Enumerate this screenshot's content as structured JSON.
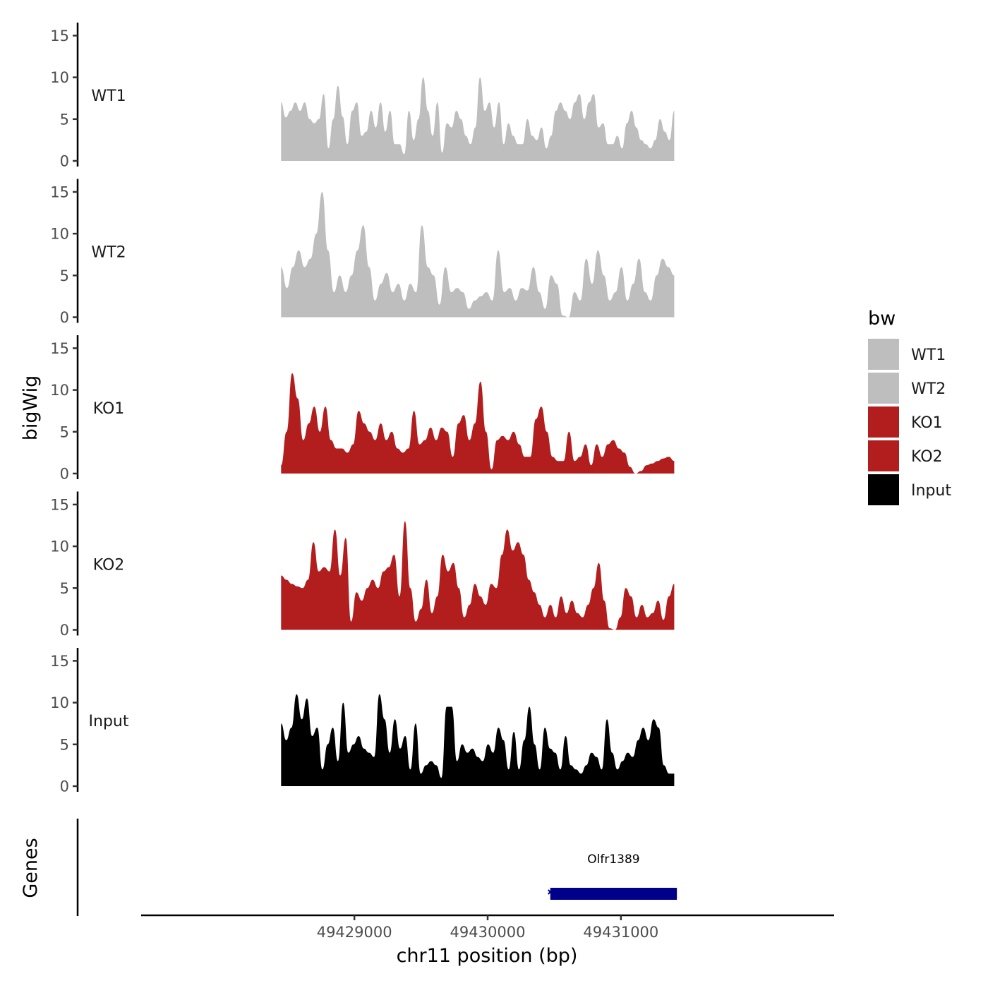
{
  "chart_data": {
    "type": "area",
    "ylabel": "bigWig",
    "xlabel": "chr11 position (bp)",
    "xlim": [
      49427400,
      49432600
    ],
    "ylim": [
      0,
      15.5
    ],
    "y_ticks": [
      "0",
      "5",
      "10",
      "15"
    ],
    "x_ticks": [
      {
        "value": 49429000,
        "label": "49429000"
      },
      {
        "value": 49430000,
        "label": "49430000"
      },
      {
        "value": 49431000,
        "label": "49431000"
      }
    ],
    "data_range": [
      49428450,
      49431400
    ],
    "legend": {
      "title": "bw",
      "placement": "right",
      "entries": [
        {
          "label": "WT1",
          "color": "#bebebe"
        },
        {
          "label": "WT2",
          "color": "#bebebe"
        },
        {
          "label": "KO1",
          "color": "#b21e1e"
        },
        {
          "label": "KO2",
          "color": "#b21e1e"
        },
        {
          "label": "Input",
          "color": "#000000"
        }
      ]
    },
    "tracks": [
      {
        "name": "WT1",
        "color": "#bebebe",
        "values": [
          7,
          5.2,
          6,
          7,
          6,
          7,
          5,
          4.5,
          5,
          8,
          1.5,
          5,
          9,
          5.3,
          2,
          6,
          7,
          3,
          3.5,
          6,
          4,
          7,
          3.5,
          6,
          2,
          2,
          0.8,
          6,
          2.5,
          5,
          10,
          6,
          3,
          7,
          1,
          4.5,
          4,
          6,
          5,
          3,
          2,
          4,
          10,
          6,
          7,
          4,
          7,
          2,
          4.5,
          3,
          2,
          2,
          5,
          3,
          2.5,
          4,
          1.5,
          3,
          6,
          7,
          6,
          5,
          7,
          8,
          5,
          7,
          8,
          4,
          4.5,
          2,
          2,
          3,
          1.5,
          4.5,
          6,
          4,
          2.5,
          2,
          1.5,
          2.5,
          5,
          3.5,
          2.5,
          6
        ]
      },
      {
        "name": "WT2",
        "color": "#bebebe",
        "values": [
          6,
          3.5,
          6,
          8,
          6,
          7,
          10,
          15,
          8,
          3,
          5,
          3,
          5,
          8,
          11,
          6,
          2,
          4,
          5.3,
          3,
          4,
          2,
          4,
          3,
          11,
          6,
          5,
          1.5,
          6,
          3,
          3.5,
          3,
          1,
          2,
          2.5,
          3,
          2,
          8,
          3,
          3.5,
          2,
          3.5,
          3.2,
          6,
          3,
          1,
          5,
          4,
          0.2,
          0,
          3,
          2,
          7,
          4,
          8,
          5,
          2,
          3,
          6,
          2,
          4,
          7,
          3,
          2,
          5,
          7,
          6,
          5
        ]
      },
      {
        "name": "KO1",
        "color": "#b21e1e",
        "values": [
          1,
          5,
          12,
          9,
          4,
          6,
          8,
          5,
          8,
          4,
          3,
          3,
          2.5,
          3.5,
          7.5,
          6,
          5,
          4,
          6,
          4,
          5,
          3,
          2.5,
          3,
          7.5,
          3.5,
          4,
          5.5,
          4,
          5.5,
          5,
          2,
          6,
          7,
          4,
          6,
          11,
          5,
          0.5,
          4,
          4.5,
          4,
          5,
          3.5,
          2,
          2,
          6.5,
          8,
          5,
          2,
          1.5,
          1.5,
          5,
          1.5,
          2,
          3.5,
          1,
          3.5,
          2,
          3.5,
          4,
          3,
          2.5,
          0.8,
          0,
          0.3,
          1,
          1.2,
          1.5,
          1.8,
          2,
          1.5
        ]
      },
      {
        "name": "KO2",
        "color": "#b21e1e",
        "values": [
          6.5,
          6,
          5.5,
          5.2,
          5,
          6,
          10.5,
          7,
          7.5,
          7,
          12,
          6.5,
          11,
          1,
          4.5,
          3.5,
          5,
          6,
          5,
          7,
          7.5,
          9,
          4,
          13,
          5,
          1,
          2.5,
          6,
          2,
          4,
          9,
          7,
          8,
          5,
          1.5,
          3,
          5.5,
          4,
          3,
          5.5,
          5,
          9,
          12,
          9.5,
          10.5,
          9,
          6,
          4.5,
          3,
          1.5,
          3,
          1.5,
          4,
          2,
          3.5,
          2,
          1.5,
          3,
          5,
          8,
          3.5,
          0.2,
          0,
          1.5,
          5,
          4,
          1.5,
          3,
          1.5,
          2,
          3.5,
          1.2,
          4,
          5.5
        ]
      },
      {
        "name": "Input",
        "color": "#000000",
        "values": [
          7.5,
          5.5,
          7,
          11,
          8,
          10.5,
          6,
          7,
          2,
          5,
          7,
          3,
          10,
          4,
          5,
          6,
          4.5,
          4,
          3.5,
          11,
          8,
          4,
          8,
          4.5,
          6,
          2,
          7.5,
          1.5,
          2.5,
          3,
          2.5,
          1,
          9.5,
          9.5,
          3,
          5,
          4,
          4.5,
          3.5,
          3,
          5,
          4,
          7,
          5.5,
          2,
          6.5,
          2,
          5.5,
          9.5,
          5,
          2,
          7,
          4.5,
          4,
          2,
          6,
          2.5,
          2,
          1.5,
          2.5,
          4,
          3.5,
          2,
          8,
          4,
          2,
          3,
          4,
          3.5,
          5.5,
          7,
          5.5,
          8,
          7,
          2.5,
          1.5,
          1.5
        ]
      }
    ],
    "genes": [
      {
        "name": "Olfr1389",
        "start": 49430470,
        "end": 49431420,
        "color": "#00008b"
      }
    ],
    "gene_track_label": "Genes"
  }
}
